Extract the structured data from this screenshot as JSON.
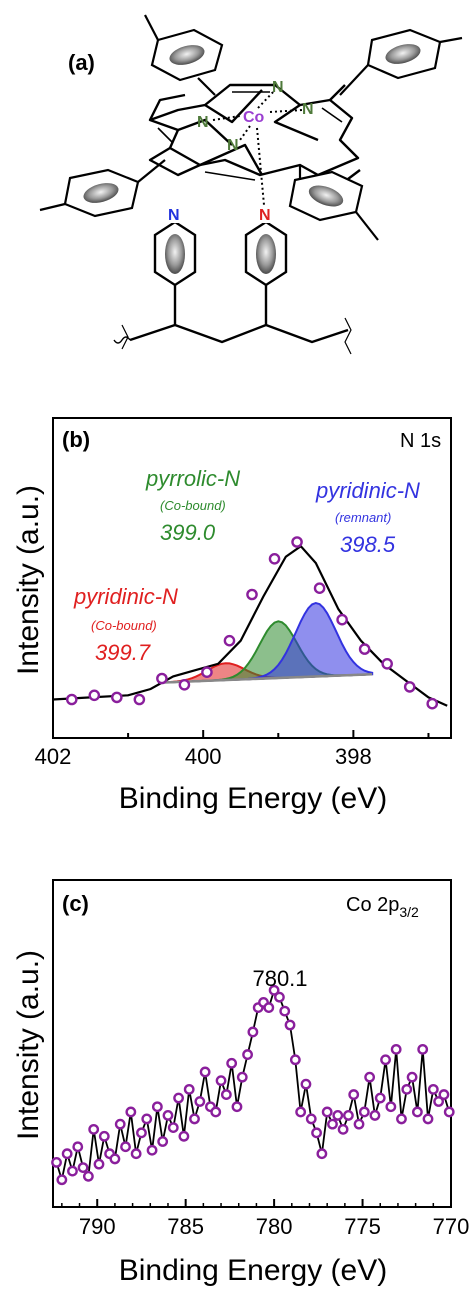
{
  "panels": {
    "a": {
      "label": "(a)",
      "atoms": {
        "co": "Co",
        "n": "N"
      }
    },
    "b": {
      "label": "(b)",
      "corner": "N 1s",
      "xlabel": "Binding Energy (eV)",
      "ylabel": "Intensity (a.u.)",
      "xticks": [
        "402",
        "400",
        "398"
      ],
      "annotations": {
        "pyrrolic_name": "pyrrolic-N",
        "pyrrolic_sub": "(Co-bound)",
        "pyrrolic_val": "399.0",
        "pyridinic_remnant_name": "pyridinic-N",
        "pyridinic_remnant_sub": "(remnant)",
        "pyridinic_remnant_val": "398.5",
        "pyridinic_co_name": "pyridinic-N",
        "pyridinic_co_sub": "(Co-bound)",
        "pyridinic_co_val": "399.7"
      }
    },
    "c": {
      "label": "(c)",
      "corner_main": "Co 2p",
      "corner_sub": "3/2",
      "xlabel": "Binding Energy (eV)",
      "ylabel": "Intensity (a.u.)",
      "xticks": [
        "790",
        "785",
        "780",
        "775",
        "770"
      ],
      "peak_label": "780.1"
    }
  },
  "colors": {
    "marker": "#8a1f9c",
    "pyridinic_co": "#e02020",
    "pyrrolic": "#2e8b2e",
    "pyridinic_remnant": "#3333e0",
    "co_atom": "#9b3fd1",
    "n_porphyrin": "#4f7a3a",
    "n_pyridine_left": "#2233dd",
    "n_pyridine_right": "#dd2222"
  },
  "chart_data": [
    {
      "type": "scatter",
      "panel": "b",
      "title": "N 1s",
      "xlabel": "Binding Energy (eV)",
      "ylabel": "Intensity (a.u.)",
      "xlim": [
        402.0,
        396.7
      ],
      "x_reversed": true,
      "ylim": [
        0.0,
        1.0
      ],
      "yticks_shown": false,
      "series": [
        {
          "name": "data",
          "x": [
            401.75,
            401.45,
            401.15,
            400.85,
            400.55,
            400.25,
            399.95,
            399.65,
            399.35,
            399.05,
            398.75,
            398.45,
            398.15,
            397.85,
            397.55,
            397.25,
            396.95
          ],
          "y": [
            0.05,
            0.07,
            0.06,
            0.05,
            0.15,
            0.12,
            0.18,
            0.33,
            0.55,
            0.72,
            0.8,
            0.58,
            0.43,
            0.29,
            0.22,
            0.11,
            0.03
          ]
        },
        {
          "name": "envelope",
          "x": [
            402.0,
            401.5,
            401.0,
            400.7,
            400.4,
            400.1,
            399.8,
            399.5,
            399.2,
            398.9,
            398.7,
            398.5,
            398.2,
            397.9,
            397.6,
            397.3,
            397.0,
            396.75
          ],
          "y": [
            0.05,
            0.06,
            0.07,
            0.1,
            0.16,
            0.19,
            0.22,
            0.33,
            0.54,
            0.73,
            0.78,
            0.7,
            0.48,
            0.33,
            0.22,
            0.14,
            0.06,
            0.02
          ]
        },
        {
          "name": "pyridinic-N (Co-bound) 399.7",
          "center": 399.7,
          "height": 0.08,
          "width": 0.35
        },
        {
          "name": "pyrrolic-N (Co-bound) 399.0",
          "center": 399.0,
          "height": 0.27,
          "width": 0.35
        },
        {
          "name": "pyridinic-N (remnant) 398.5",
          "center": 398.5,
          "height": 0.35,
          "width": 0.38
        }
      ],
      "baseline": {
        "x": [
          400.6,
          397.75
        ],
        "y": [
          0.13,
          0.17
        ]
      }
    },
    {
      "type": "line",
      "panel": "c",
      "title": "Co 2p3/2",
      "xlabel": "Binding Energy (eV)",
      "ylabel": "Intensity (a.u.)",
      "xlim": [
        792.5,
        770.0
      ],
      "x_reversed": true,
      "ylim": [
        0.0,
        1.0
      ],
      "yticks_shown": false,
      "peak": {
        "x": 780.1,
        "label": "780.1"
      },
      "series": [
        {
          "name": "data",
          "x": [
            792.3,
            792.0,
            791.7,
            791.4,
            791.1,
            790.8,
            790.5,
            790.2,
            789.9,
            789.6,
            789.3,
            789.0,
            788.7,
            788.4,
            788.1,
            787.8,
            787.5,
            787.2,
            786.9,
            786.6,
            786.3,
            786.0,
            785.7,
            785.4,
            785.1,
            784.8,
            784.5,
            784.2,
            783.9,
            783.6,
            783.3,
            783.0,
            782.7,
            782.4,
            782.1,
            781.8,
            781.5,
            781.2,
            780.9,
            780.6,
            780.3,
            780.0,
            779.7,
            779.4,
            779.1,
            778.8,
            778.5,
            778.2,
            777.9,
            777.6,
            777.3,
            777.0,
            776.7,
            776.4,
            776.1,
            775.8,
            775.5,
            775.2,
            774.9,
            774.6,
            774.3,
            774.0,
            773.7,
            773.4,
            773.1,
            772.8,
            772.5,
            772.2,
            771.9,
            771.6,
            771.3,
            771.0,
            770.7,
            770.4,
            770.1
          ],
          "y": [
            0.13,
            0.03,
            0.18,
            0.08,
            0.22,
            0.1,
            0.05,
            0.32,
            0.12,
            0.28,
            0.18,
            0.15,
            0.35,
            0.22,
            0.42,
            0.18,
            0.3,
            0.38,
            0.2,
            0.45,
            0.25,
            0.4,
            0.33,
            0.5,
            0.28,
            0.55,
            0.38,
            0.48,
            0.65,
            0.45,
            0.42,
            0.6,
            0.52,
            0.7,
            0.45,
            0.62,
            0.75,
            0.88,
            1.02,
            1.05,
            1.02,
            1.12,
            1.08,
            1.0,
            0.92,
            0.72,
            0.42,
            0.58,
            0.38,
            0.3,
            0.18,
            0.42,
            0.35,
            0.4,
            0.32,
            0.4,
            0.52,
            0.35,
            0.42,
            0.62,
            0.4,
            0.5,
            0.72,
            0.45,
            0.78,
            0.38,
            0.55,
            0.62,
            0.42,
            0.78,
            0.38,
            0.55,
            0.48,
            0.52,
            0.42
          ]
        }
      ]
    }
  ]
}
